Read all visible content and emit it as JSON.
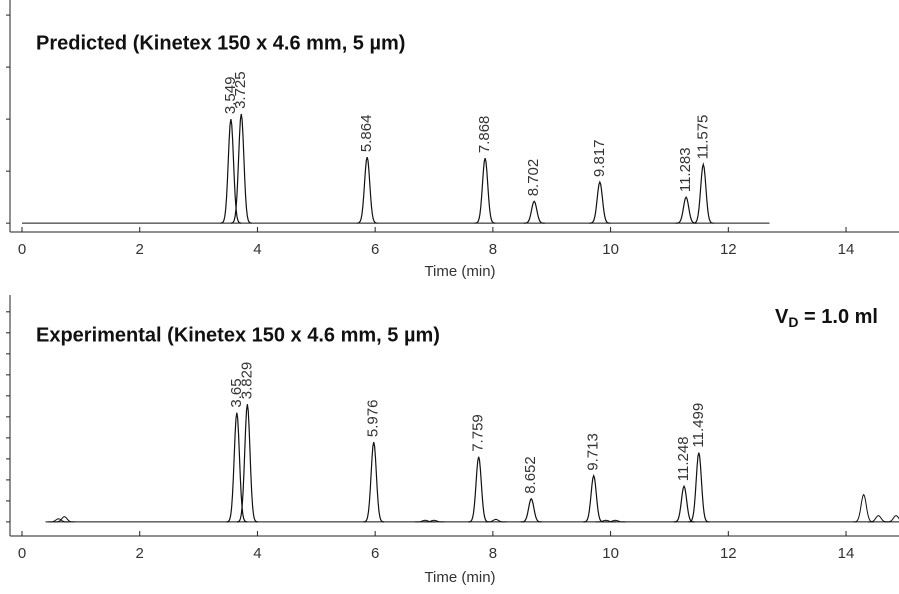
{
  "chart_data": [
    {
      "type": "chromatogram",
      "title": "Predicted (Kinetex 150 x 4.6 mm, 5 µm)",
      "x_label": "Time (min)",
      "x": [
        3.549,
        3.725,
        5.864,
        7.868,
        8.702,
        9.817,
        11.283,
        11.575
      ],
      "values": [
        2.0,
        2.1,
        1.27,
        1.25,
        0.42,
        0.79,
        0.5,
        1.13
      ],
      "trace_xlim": [
        0,
        12.7
      ],
      "xlim": [
        0,
        14.9
      ],
      "xticks": [
        0,
        2,
        4,
        6,
        8,
        10,
        12,
        14
      ],
      "ylim": [
        -0.17,
        4.29
      ],
      "yticks": [
        0,
        1,
        2,
        3,
        4
      ],
      "color": "#111111"
    },
    {
      "type": "chromatogram",
      "title": "Experimental (Kinetex 150 x 4.6 mm, 5 µm)",
      "x_label": "Time (min)",
      "annotation": {
        "text": "V",
        "sub": "D",
        "rest": " = 1.0 ml"
      },
      "x": [
        3.65,
        3.829,
        5.976,
        7.759,
        8.652,
        9.713,
        11.248,
        11.499
      ],
      "values": [
        5.2,
        5.6,
        3.8,
        3.1,
        1.1,
        2.2,
        1.7,
        3.3
      ],
      "minor_peaks": {
        "x": [
          0.62,
          0.72,
          6.85,
          7.0,
          8.05,
          9.92,
          10.08,
          14.3,
          14.55,
          14.85
        ],
        "values": [
          0.15,
          0.25,
          0.08,
          0.08,
          0.12,
          0.08,
          0.08,
          1.3,
          0.3,
          0.3
        ]
      },
      "trace_xlim": [
        0.4,
        14.9
      ],
      "xlim": [
        0,
        14.9
      ],
      "xticks": [
        0,
        2,
        4,
        6,
        8,
        10,
        12,
        14
      ],
      "ylim": [
        -0.67,
        10.8
      ],
      "yticks": [
        0,
        1,
        2,
        3,
        4,
        5,
        6,
        7,
        8,
        9,
        10
      ],
      "color": "#111111"
    }
  ]
}
